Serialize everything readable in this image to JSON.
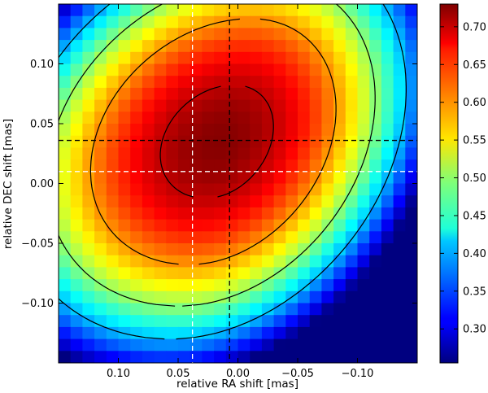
{
  "chart_data": {
    "type": "heatmap",
    "xlabel": "relative RA shift [mas]",
    "ylabel": "relative DEC shift [mas]",
    "xlim": [
      0.15,
      -0.15
    ],
    "ylim": [
      -0.15,
      0.15
    ],
    "x_ticks": [
      0.1,
      0.05,
      0.0,
      -0.05,
      -0.1
    ],
    "x_tick_labels": [
      "0.10",
      "0.05",
      "0.00",
      "−0.05",
      "−0.10"
    ],
    "y_ticks": [
      0.1,
      0.05,
      0.0,
      -0.05,
      -0.1
    ],
    "y_tick_labels": [
      "0.10",
      "0.05",
      "0.00",
      "−0.05",
      "−0.10"
    ],
    "colorbar": {
      "colormap": "jet",
      "range": [
        0.255,
        0.73
      ],
      "ticks": [
        0.7,
        0.65,
        0.6,
        0.55,
        0.5,
        0.45,
        0.4,
        0.35,
        0.3
      ],
      "tick_labels": [
        "0.70",
        "0.65",
        "0.60",
        "0.55",
        "0.50",
        "0.45",
        "0.40",
        "0.35",
        "0.30"
      ]
    },
    "grid": {
      "nx": 30,
      "ny": 30
    },
    "field": {
      "peak_value": 0.727,
      "peak_x": 0.015,
      "peak_y": 0.035,
      "ridge_slope_dx_per_dy": -0.25,
      "falloff_right": 14.5,
      "falloff_left": 11.5,
      "falloff_along_ridge": 12.0
    },
    "contour_levels": [
      0.7,
      0.6,
      0.5,
      0.4
    ],
    "marker_lines": [
      {
        "orientation": "vertical",
        "x": 0.038,
        "color": "#ffffff",
        "style": "dashed"
      },
      {
        "orientation": "vertical",
        "x": 0.007,
        "color": "#000000",
        "style": "dashed"
      },
      {
        "orientation": "horizontal",
        "y": 0.036,
        "color": "#000000",
        "style": "dashed"
      },
      {
        "orientation": "horizontal",
        "y": 0.01,
        "color": "#ffffff",
        "style": "dashed"
      }
    ]
  }
}
